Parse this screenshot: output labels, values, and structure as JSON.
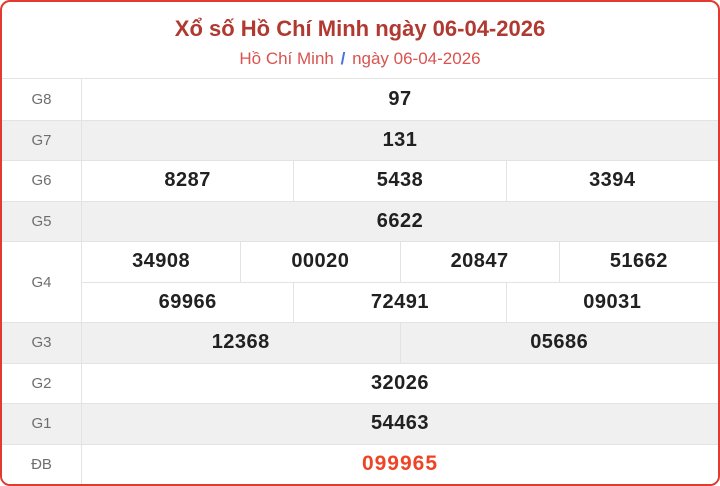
{
  "header": {
    "title": "Xổ số Hồ Chí Minh ngày 06-04-2026",
    "region": "Hồ Chí Minh",
    "separator": "/",
    "date": "ngày 06-04-2026"
  },
  "colors": {
    "card_border": "#e13b30",
    "title": "#b03a31",
    "breadcrumb_link": "#d9534f",
    "breadcrumb_separator": "#4a74d9",
    "number_text": "#212121",
    "special_number_text": "#ee4426",
    "row_label_text": "#6e6e6e",
    "shaded_row_bg": "#f0f0f0",
    "grid_line": "#e3e3e3"
  },
  "table": {
    "rows": [
      {
        "label": "G8",
        "cells": [
          "97"
        ]
      },
      {
        "label": "G7",
        "cells": [
          "131"
        ]
      },
      {
        "label": "G6",
        "cells": [
          "8287",
          "5438",
          "3394"
        ]
      },
      {
        "label": "G5",
        "cells": [
          "6622"
        ]
      },
      {
        "label": "G4",
        "lines": [
          [
            "34908",
            "00020",
            "20847",
            "51662"
          ],
          [
            "69966",
            "72491",
            "09031"
          ]
        ]
      },
      {
        "label": "G3",
        "cells": [
          "12368",
          "05686"
        ]
      },
      {
        "label": "G2",
        "cells": [
          "32026"
        ]
      },
      {
        "label": "G1",
        "cells": [
          "54463"
        ]
      },
      {
        "label": "ĐB",
        "cells": [
          "099965"
        ]
      }
    ]
  }
}
